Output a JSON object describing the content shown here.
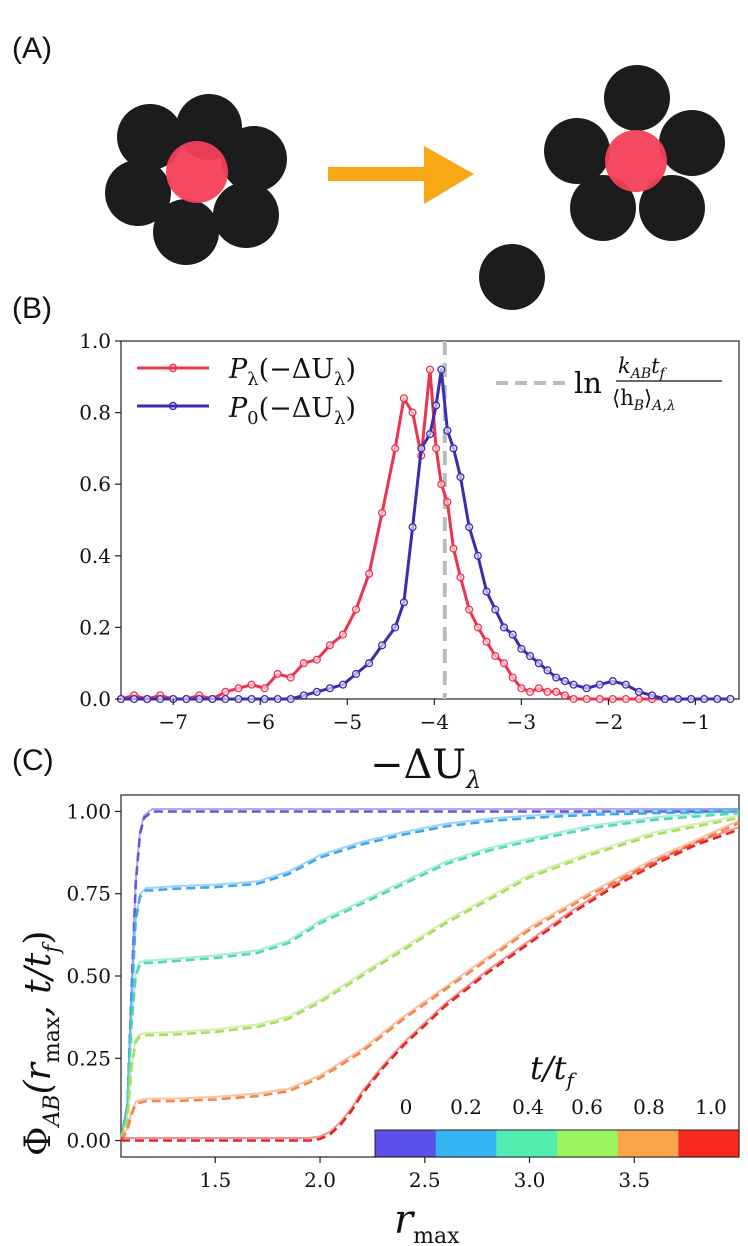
{
  "figure": {
    "panel_labels": [
      "(A)",
      "(B)",
      "(C)"
    ],
    "colors": {
      "solvent": "#1c1c1c",
      "solute": "#f43f5a",
      "arrow": "#f7a814",
      "p_lambda": "#ee3350",
      "p_zero": "#3d2bb0",
      "vline": "#b7bdb8"
    }
  },
  "panel_a": {
    "description_icon": "cage-escape-arrow-icon"
  },
  "chart_data": [
    {
      "type": "line",
      "panel": "B",
      "xlabel": "−ΔU",
      "xlabel_sub": "λ",
      "xlim": [
        -7.6,
        -0.5
      ],
      "ylim": [
        0.0,
        1.0
      ],
      "xticks": [
        -7,
        -6,
        -5,
        -4,
        -3,
        -2,
        -1
      ],
      "xtick_labels": [
        "−7",
        "−6",
        "−5",
        "−4",
        "−3",
        "−2",
        "−1"
      ],
      "yticks": [
        0.0,
        0.2,
        0.4,
        0.6,
        0.8,
        1.0
      ],
      "ytick_labels": [
        "0.0",
        "0.2",
        "0.4",
        "0.6",
        "0.8",
        "1.0"
      ],
      "legend": [
        {
          "name_main": "P",
          "name_sub": "λ",
          "name_arg": "(−ΔU",
          "name_arg_sub": "λ",
          "name_close": ")"
        },
        {
          "name_main": "P",
          "name_sub": "0",
          "name_arg": "(−ΔU",
          "name_arg_sub": "λ",
          "name_close": ")"
        }
      ],
      "vline": {
        "x": -3.88,
        "label_ln": "ln",
        "label_num": "k",
        "label_num_sub": "AB",
        "label_num_t": "t",
        "label_num_t_sub": "f",
        "label_den": "⟨h",
        "label_den_sub": "B",
        "label_den_close": "⟩",
        "label_den_close_sub": "A,λ"
      },
      "series": [
        {
          "name": "P_lambda",
          "x": [
            -7.6,
            -7.45,
            -7.3,
            -7.15,
            -7.0,
            -6.85,
            -6.7,
            -6.55,
            -6.4,
            -6.25,
            -6.1,
            -5.95,
            -5.8,
            -5.65,
            -5.5,
            -5.35,
            -5.2,
            -5.05,
            -4.9,
            -4.75,
            -4.6,
            -4.45,
            -4.35,
            -4.25,
            -4.15,
            -4.05,
            -3.98,
            -3.92,
            -3.85,
            -3.78,
            -3.7,
            -3.6,
            -3.5,
            -3.4,
            -3.3,
            -3.2,
            -3.1,
            -3.0,
            -2.9,
            -2.8,
            -2.7,
            -2.6,
            -2.5,
            -2.4,
            -2.25,
            -2.1,
            -1.95,
            -1.8,
            -1.65,
            -1.5,
            -1.35,
            -1.2,
            -1.05,
            -0.9,
            -0.75,
            -0.6
          ],
          "values": [
            0.0,
            0.01,
            0.0,
            0.01,
            0.0,
            0.0,
            0.01,
            0.0,
            0.02,
            0.03,
            0.04,
            0.03,
            0.07,
            0.06,
            0.1,
            0.11,
            0.15,
            0.18,
            0.25,
            0.35,
            0.52,
            0.7,
            0.84,
            0.8,
            0.68,
            0.92,
            0.7,
            0.6,
            0.55,
            0.42,
            0.34,
            0.25,
            0.2,
            0.16,
            0.12,
            0.1,
            0.06,
            0.03,
            0.02,
            0.03,
            0.02,
            0.02,
            0.01,
            0.0,
            0.0,
            0.0,
            0.0,
            0.0,
            0.0,
            0.0,
            0.0,
            0.0,
            0.0,
            0.0,
            0.0,
            0.0
          ]
        },
        {
          "name": "P_0",
          "x": [
            -7.6,
            -7.45,
            -7.3,
            -7.15,
            -7.0,
            -6.85,
            -6.7,
            -6.55,
            -6.4,
            -6.25,
            -6.1,
            -5.95,
            -5.8,
            -5.65,
            -5.5,
            -5.35,
            -5.2,
            -5.05,
            -4.9,
            -4.75,
            -4.6,
            -4.45,
            -4.35,
            -4.25,
            -4.15,
            -4.05,
            -3.98,
            -3.92,
            -3.85,
            -3.78,
            -3.7,
            -3.6,
            -3.5,
            -3.4,
            -3.3,
            -3.2,
            -3.1,
            -3.0,
            -2.9,
            -2.8,
            -2.7,
            -2.6,
            -2.5,
            -2.4,
            -2.25,
            -2.1,
            -1.95,
            -1.8,
            -1.65,
            -1.5,
            -1.35,
            -1.2,
            -1.05,
            -0.9,
            -0.75,
            -0.6
          ],
          "values": [
            0.0,
            0.0,
            0.0,
            0.0,
            0.0,
            0.0,
            0.0,
            0.0,
            0.0,
            0.0,
            0.0,
            0.0,
            0.0,
            0.0,
            0.01,
            0.02,
            0.03,
            0.04,
            0.07,
            0.1,
            0.15,
            0.2,
            0.27,
            0.48,
            0.7,
            0.74,
            0.82,
            0.92,
            0.75,
            0.7,
            0.62,
            0.48,
            0.4,
            0.3,
            0.25,
            0.2,
            0.18,
            0.14,
            0.12,
            0.1,
            0.08,
            0.06,
            0.05,
            0.04,
            0.03,
            0.04,
            0.05,
            0.04,
            0.02,
            0.01,
            0.0,
            0.0,
            0.0,
            0.0,
            0.0,
            0.0
          ]
        }
      ]
    },
    {
      "type": "line",
      "panel": "C",
      "xlabel": "r",
      "xlabel_sub": "max",
      "ylabel_main": "Φ",
      "ylabel_sub": "AB",
      "ylabel_arg": "(r",
      "ylabel_arg_sub": "max",
      "ylabel_rest": ", t/t",
      "ylabel_rest_sub": "f",
      "ylabel_close": ")",
      "xlim": [
        1.05,
        4.0
      ],
      "ylim": [
        -0.05,
        1.05
      ],
      "xticks": [
        1.5,
        2.0,
        2.5,
        3.0,
        3.5
      ],
      "xtick_labels": [
        "1.5",
        "2.0",
        "2.5",
        "3.0",
        "3.5"
      ],
      "yticks": [
        0.0,
        0.25,
        0.5,
        0.75,
        1.0
      ],
      "ytick_labels": [
        "0.00",
        "0.25",
        "0.50",
        "0.75",
        "1.00"
      ],
      "colorbar": {
        "title": "t/t",
        "title_sub": "f",
        "labels": [
          "0",
          "0.2",
          "0.4",
          "0.6",
          "0.8",
          "1.0"
        ],
        "colors": [
          "#5a4fe6",
          "#35b4f2",
          "#52edb0",
          "#9bf55c",
          "#fba44a",
          "#f72a1d"
        ]
      },
      "series": [
        {
          "name": "t=0",
          "color": "#6b52d9",
          "x": [
            1.05,
            1.08,
            1.1,
            1.12,
            1.14,
            1.16,
            1.18,
            1.2,
            1.25,
            1.3,
            1.5,
            2.0,
            2.5,
            3.0,
            3.5,
            4.0
          ],
          "values": [
            0.0,
            0.1,
            0.45,
            0.78,
            0.93,
            0.98,
            0.99,
            1.0,
            1.0,
            1.0,
            1.0,
            1.0,
            1.0,
            1.0,
            1.0,
            1.0
          ]
        },
        {
          "name": "t=0.2",
          "color": "#3fa8ec",
          "x": [
            1.05,
            1.08,
            1.1,
            1.12,
            1.14,
            1.17,
            1.2,
            1.3,
            1.5,
            1.7,
            1.85,
            2.0,
            2.2,
            2.4,
            2.6,
            2.8,
            3.0,
            3.3,
            3.6,
            4.0
          ],
          "values": [
            0.0,
            0.1,
            0.42,
            0.67,
            0.74,
            0.76,
            0.76,
            0.765,
            0.77,
            0.78,
            0.81,
            0.86,
            0.9,
            0.93,
            0.955,
            0.97,
            0.98,
            0.99,
            0.995,
            1.0
          ]
        },
        {
          "name": "t=0.4",
          "color": "#4fd9b5",
          "x": [
            1.05,
            1.08,
            1.1,
            1.12,
            1.14,
            1.17,
            1.2,
            1.3,
            1.5,
            1.7,
            1.85,
            2.0,
            2.2,
            2.4,
            2.6,
            2.8,
            3.0,
            3.3,
            3.6,
            4.0
          ],
          "values": [
            0.0,
            0.08,
            0.35,
            0.5,
            0.535,
            0.54,
            0.54,
            0.545,
            0.555,
            0.57,
            0.6,
            0.66,
            0.72,
            0.78,
            0.84,
            0.88,
            0.91,
            0.95,
            0.975,
            0.995
          ]
        },
        {
          "name": "t=0.6",
          "color": "#a7df5e",
          "x": [
            1.05,
            1.08,
            1.1,
            1.12,
            1.14,
            1.17,
            1.2,
            1.3,
            1.5,
            1.7,
            1.85,
            2.0,
            2.2,
            2.4,
            2.6,
            2.8,
            3.0,
            3.3,
            3.6,
            4.0
          ],
          "values": [
            0.0,
            0.06,
            0.22,
            0.3,
            0.315,
            0.32,
            0.32,
            0.322,
            0.33,
            0.345,
            0.37,
            0.42,
            0.5,
            0.58,
            0.66,
            0.73,
            0.8,
            0.87,
            0.93,
            0.98
          ]
        },
        {
          "name": "t=0.8",
          "color": "#f2884a",
          "x": [
            1.05,
            1.08,
            1.1,
            1.12,
            1.14,
            1.17,
            1.2,
            1.3,
            1.5,
            1.7,
            1.85,
            2.0,
            2.2,
            2.4,
            2.6,
            2.8,
            3.0,
            3.3,
            3.6,
            4.0
          ],
          "values": [
            0.0,
            0.03,
            0.08,
            0.11,
            0.115,
            0.12,
            0.12,
            0.12,
            0.125,
            0.135,
            0.15,
            0.19,
            0.27,
            0.37,
            0.46,
            0.55,
            0.64,
            0.75,
            0.85,
            0.965
          ]
        },
        {
          "name": "t=1.0",
          "color": "#e6261e",
          "x": [
            1.05,
            1.2,
            1.4,
            1.6,
            1.8,
            1.95,
            2.0,
            2.05,
            2.1,
            2.15,
            2.2,
            2.3,
            2.4,
            2.5,
            2.6,
            2.8,
            3.0,
            3.2,
            3.4,
            3.6,
            3.8,
            4.0
          ],
          "values": [
            0.0,
            0.0,
            0.0,
            0.0,
            0.0,
            0.0,
            0.005,
            0.02,
            0.05,
            0.09,
            0.14,
            0.22,
            0.29,
            0.35,
            0.41,
            0.51,
            0.6,
            0.69,
            0.77,
            0.84,
            0.9,
            0.945
          ]
        }
      ]
    }
  ]
}
